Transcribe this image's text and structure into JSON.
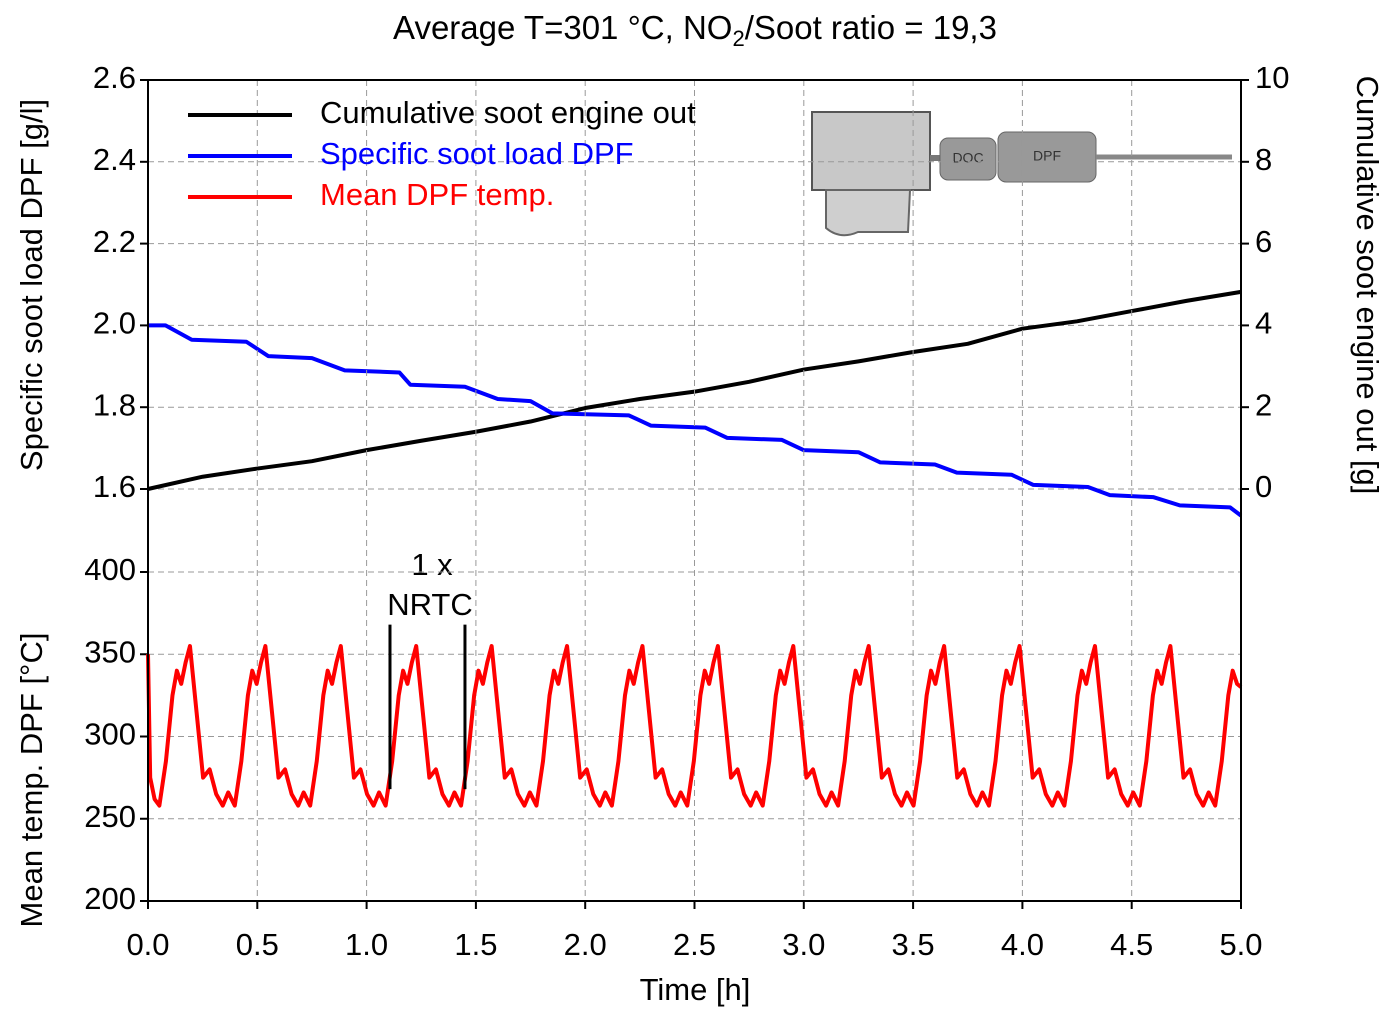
{
  "chart_data": [
    {
      "type": "line",
      "title": {
        "main": "Average T=301 °C, NO",
        "sub": "2",
        "rest": "/Soot ratio = 19,3"
      },
      "ylabel": "Specific soot load DPF [g/l]",
      "y2label": "Cumulative soot engine out [g]",
      "xlim": [
        0,
        5
      ],
      "ylim": [
        1.6,
        2.6
      ],
      "yticks": [
        {
          "value": 2.6,
          "label": "2.6"
        },
        {
          "value": 2.4,
          "label": "2.4"
        },
        {
          "value": 2.2,
          "label": "2.2"
        },
        {
          "value": 2,
          "label": "2.0"
        },
        {
          "value": 1.8,
          "label": "1.8"
        },
        {
          "value": 1.6,
          "label": "1.6"
        }
      ],
      "y2lim": [
        0,
        10
      ],
      "y2ticks": [
        10,
        8,
        6,
        4,
        2,
        0
      ],
      "grid": true,
      "legend": "upper left",
      "inset": [
        "DOC",
        "DPF"
      ],
      "series": [
        {
          "name": "Cumulative soot engine out",
          "color": "#000000",
          "axis": "y2",
          "x": [
            0,
            0.25,
            0.5,
            0.75,
            1,
            1.25,
            1.5,
            1.75,
            2,
            2.25,
            2.5,
            2.75,
            3,
            3.25,
            3.5,
            3.75,
            4,
            4.25,
            4.5,
            4.75,
            5
          ],
          "values": [
            0,
            0.3,
            0.5,
            0.68,
            0.95,
            1.18,
            1.4,
            1.65,
            1.98,
            2.2,
            2.38,
            2.62,
            2.92,
            3.12,
            3.35,
            3.55,
            3.92,
            4.1,
            4.35,
            4.6,
            4.82
          ]
        },
        {
          "name": "Specific soot load DPF",
          "color": "#0000ff",
          "x": [
            0,
            0.08,
            0.2,
            0.45,
            0.55,
            0.75,
            0.9,
            1.15,
            1.2,
            1.45,
            1.6,
            1.75,
            1.85,
            2.2,
            2.3,
            2.55,
            2.65,
            2.9,
            3,
            3.25,
            3.35,
            3.6,
            3.7,
            3.95,
            4.05,
            4.3,
            4.4,
            4.6,
            4.72,
            4.95,
            5
          ],
          "values": [
            2,
            2,
            1.965,
            1.96,
            1.925,
            1.92,
            1.89,
            1.885,
            1.855,
            1.85,
            1.82,
            1.815,
            1.785,
            1.78,
            1.755,
            1.75,
            1.725,
            1.72,
            1.695,
            1.69,
            1.665,
            1.66,
            1.64,
            1.635,
            1.61,
            1.605,
            1.585,
            1.58,
            1.56,
            1.555,
            1.535
          ]
        }
      ]
    },
    {
      "type": "line",
      "ylabel": "Mean temp. DPF [°C]",
      "xlabel": "Time [h]",
      "xlim": [
        0,
        5
      ],
      "xticks": [
        {
          "value": 0,
          "label": "0.0"
        },
        0.5,
        {
          "value": 1,
          "label": "1.0"
        },
        1.5,
        {
          "value": 2,
          "label": "2.0"
        },
        2.5,
        {
          "value": 3,
          "label": "3.0"
        },
        3.5,
        {
          "value": 4,
          "label": "4.0"
        },
        4.5,
        {
          "value": 5,
          "label": "5.0"
        }
      ],
      "ylim": [
        200,
        400
      ],
      "yticks": [
        400,
        350,
        300,
        250,
        200
      ],
      "grid": true,
      "annotation": [
        "1 x",
        "NRTC"
      ],
      "markers_x": [
        1.107,
        1.45
      ],
      "markers_y": [
        268,
        368
      ],
      "series": [
        {
          "name": "Mean DPF temp.",
          "color": "#ff0000",
          "x": [
            0,
            0.01,
            0.03,
            0.052,
            0.082,
            0.112,
            0.132,
            0.152,
            0.172,
            0.192,
            0.222,
            0.252,
            0.282,
            0.312,
            0.342,
            0.367,
            0.397,
            0.427,
            0.457,
            0.477,
            0.497,
            0.517,
            0.537,
            0.567,
            0.597,
            0.627,
            0.657,
            0.687,
            0.712,
            0.742,
            0.772,
            0.802,
            0.822,
            0.842,
            0.862,
            0.882,
            0.912,
            0.942,
            0.972,
            1.002,
            1.032,
            1.057,
            1.087,
            1.117,
            1.147,
            1.167,
            1.187,
            1.207,
            1.227,
            1.257,
            1.287,
            1.317,
            1.347,
            1.377,
            1.402,
            1.432,
            1.462,
            1.492,
            1.512,
            1.532,
            1.552,
            1.572,
            1.602,
            1.632,
            1.662,
            1.692,
            1.722,
            1.747,
            1.777,
            1.807,
            1.837,
            1.857,
            1.877,
            1.897,
            1.917,
            1.947,
            1.977,
            2.007,
            2.037,
            2.067,
            2.092,
            2.122,
            2.152,
            2.182,
            2.202,
            2.222,
            2.242,
            2.262,
            2.292,
            2.322,
            2.352,
            2.382,
            2.412,
            2.437,
            2.467,
            2.497,
            2.527,
            2.547,
            2.567,
            2.587,
            2.607,
            2.637,
            2.667,
            2.697,
            2.727,
            2.757,
            2.782,
            2.812,
            2.842,
            2.872,
            2.892,
            2.912,
            2.932,
            2.952,
            2.982,
            3.012,
            3.042,
            3.072,
            3.102,
            3.127,
            3.157,
            3.187,
            3.217,
            3.237,
            3.257,
            3.277,
            3.297,
            3.327,
            3.357,
            3.387,
            3.417,
            3.447,
            3.472,
            3.502,
            3.532,
            3.562,
            3.582,
            3.602,
            3.622,
            3.642,
            3.672,
            3.702,
            3.732,
            3.762,
            3.792,
            3.817,
            3.847,
            3.877,
            3.907,
            3.927,
            3.947,
            3.967,
            3.987,
            4.017,
            4.047,
            4.077,
            4.107,
            4.137,
            4.162,
            4.192,
            4.222,
            4.252,
            4.272,
            4.292,
            4.312,
            4.332,
            4.362,
            4.392,
            4.422,
            4.452,
            4.482,
            4.507,
            4.537,
            4.567,
            4.597,
            4.617,
            4.637,
            4.657,
            4.677,
            4.707,
            4.737,
            4.767,
            4.797,
            4.827,
            4.852,
            4.882,
            4.912,
            4.942,
            4.962,
            4.982,
            5
          ],
          "values": [
            350,
            275,
            262,
            258,
            285,
            325,
            340,
            332,
            345,
            355,
            315,
            275,
            280,
            265,
            258,
            266,
            258,
            285,
            325,
            340,
            332,
            345,
            355,
            315,
            275,
            280,
            265,
            258,
            266,
            258,
            285,
            325,
            340,
            332,
            345,
            355,
            315,
            275,
            280,
            265,
            258,
            266,
            258,
            285,
            325,
            340,
            332,
            345,
            355,
            315,
            275,
            280,
            265,
            258,
            266,
            258,
            285,
            325,
            340,
            332,
            345,
            355,
            315,
            275,
            280,
            265,
            258,
            266,
            258,
            285,
            325,
            340,
            332,
            345,
            355,
            315,
            275,
            280,
            265,
            258,
            266,
            258,
            285,
            325,
            340,
            332,
            345,
            355,
            315,
            275,
            280,
            265,
            258,
            266,
            258,
            285,
            325,
            340,
            332,
            345,
            355,
            315,
            275,
            280,
            265,
            258,
            266,
            258,
            285,
            325,
            340,
            332,
            345,
            355,
            315,
            275,
            280,
            265,
            258,
            266,
            258,
            285,
            325,
            340,
            332,
            345,
            355,
            315,
            275,
            280,
            265,
            258,
            266,
            258,
            285,
            325,
            340,
            332,
            345,
            355,
            315,
            275,
            280,
            265,
            258,
            266,
            258,
            285,
            325,
            340,
            332,
            345,
            355,
            315,
            275,
            280,
            265,
            258,
            266,
            258,
            285,
            325,
            340,
            332,
            345,
            355,
            315,
            275,
            280,
            265,
            258,
            266,
            258,
            285,
            325,
            340,
            332,
            345,
            355,
            315,
            275,
            280,
            265,
            258,
            266,
            258,
            285,
            325,
            340,
            332,
            330
          ]
        }
      ]
    }
  ]
}
